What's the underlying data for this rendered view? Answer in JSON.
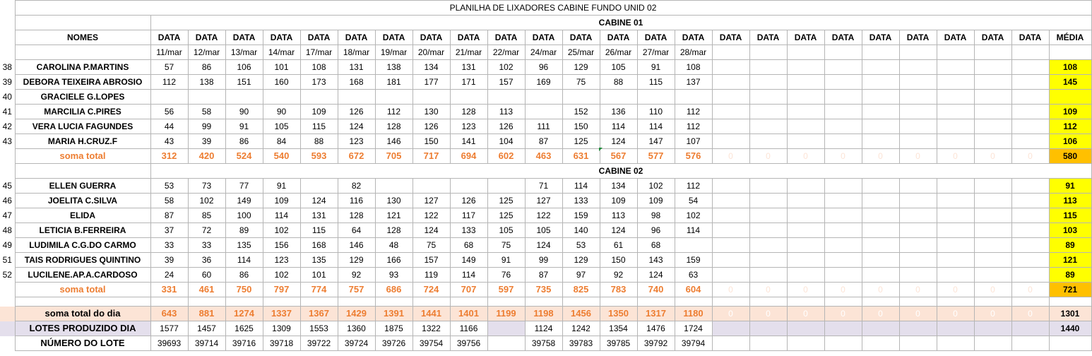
{
  "title": "PLANILHA DE LIXADORES CABINE FUNDO UNID 02",
  "header": {
    "names_label": "NOMES",
    "data_label": "DATA",
    "media_label": "MÉDIA",
    "dates": [
      "11/mar",
      "12/mar",
      "13/mar",
      "14/mar",
      "17/mar",
      "18/mar",
      "19/mar",
      "20/mar",
      "21/mar",
      "22/mar",
      "24/mar",
      "25/mar",
      "26/mar",
      "27/mar",
      "28/mar"
    ]
  },
  "cabin1": {
    "label": "CABINE 01",
    "rows": [
      {
        "rn": "38",
        "name": "CAROLINA P.MARTINS",
        "values": [
          "57",
          "86",
          "106",
          "101",
          "108",
          "131",
          "138",
          "134",
          "131",
          "102",
          "96",
          "129",
          "105",
          "91",
          "108"
        ],
        "media": "108"
      },
      {
        "rn": "39",
        "name": "DEBORA TEIXEIRA ABROSIO",
        "values": [
          "112",
          "138",
          "151",
          "160",
          "173",
          "168",
          "181",
          "177",
          "171",
          "157",
          "169",
          "75",
          "88",
          "115",
          "137"
        ],
        "media": "145"
      },
      {
        "rn": "40",
        "name": "GRACIELE G.LOPES",
        "values": [
          "",
          "",
          "",
          "",
          "",
          "",
          "",
          "",
          "",
          "",
          "",
          "",
          "",
          "",
          ""
        ],
        "media": ""
      },
      {
        "rn": "41",
        "name": "MARCILIA C.PIRES",
        "values": [
          "56",
          "58",
          "90",
          "90",
          "109",
          "126",
          "112",
          "130",
          "128",
          "113",
          "",
          "152",
          "136",
          "110",
          "112"
        ],
        "media": "109"
      },
      {
        "rn": "42",
        "name": "VERA LUCIA FAGUNDES",
        "values": [
          "44",
          "99",
          "91",
          "105",
          "115",
          "124",
          "128",
          "126",
          "123",
          "126",
          "111",
          "150",
          "114",
          "114",
          "112"
        ],
        "media": "112"
      },
      {
        "rn": "43",
        "name": "MARIA H.CRUZ.F",
        "values": [
          "43",
          "39",
          "86",
          "84",
          "88",
          "123",
          "146",
          "150",
          "141",
          "104",
          "87",
          "125",
          "124",
          "147",
          "107"
        ],
        "media": "106"
      }
    ],
    "sum_label": "soma total",
    "sum_values": [
      "312",
      "420",
      "524",
      "540",
      "593",
      "672",
      "705",
      "717",
      "694",
      "602",
      "463",
      "631",
      "567",
      "577",
      "576",
      "0",
      "0",
      "0",
      "0",
      "0",
      "0",
      "0",
      "0",
      "0"
    ],
    "sum_media": "580"
  },
  "cabin2": {
    "label": "CABINE 02",
    "rows": [
      {
        "rn": "45",
        "name": "ELLEN GUERRA",
        "values": [
          "53",
          "73",
          "77",
          "91",
          "",
          "82",
          "",
          "",
          "",
          "",
          "71",
          "114",
          "134",
          "102",
          "112"
        ],
        "media": "91"
      },
      {
        "rn": "46",
        "name": "JOELITA C.SILVA",
        "values": [
          "58",
          "102",
          "149",
          "109",
          "124",
          "116",
          "130",
          "127",
          "126",
          "125",
          "127",
          "133",
          "109",
          "109",
          "54"
        ],
        "media": "113"
      },
      {
        "rn": "47",
        "name": "ELIDA",
        "values": [
          "87",
          "85",
          "100",
          "114",
          "131",
          "128",
          "121",
          "122",
          "117",
          "125",
          "122",
          "159",
          "113",
          "98",
          "102"
        ],
        "media": "115"
      },
      {
        "rn": "48",
        "name": "LETICIA B.FERREIRA",
        "values": [
          "37",
          "72",
          "89",
          "102",
          "115",
          "64",
          "128",
          "124",
          "133",
          "105",
          "105",
          "140",
          "124",
          "96",
          "114"
        ],
        "media": "103"
      },
      {
        "rn": "49",
        "name": "LUDIMILA C.G.DO CARMO",
        "values": [
          "33",
          "33",
          "135",
          "156",
          "168",
          "146",
          "48",
          "75",
          "68",
          "75",
          "124",
          "53",
          "61",
          "68",
          ""
        ],
        "media": "89"
      },
      {
        "rn": "51",
        "name": "TAIS RODRIGUES QUINTINO",
        "values": [
          "39",
          "36",
          "114",
          "123",
          "135",
          "129",
          "166",
          "157",
          "149",
          "91",
          "99",
          "129",
          "150",
          "143",
          "159"
        ],
        "media": "121"
      },
      {
        "rn": "52",
        "name": "LUCILENE.AP.A.CARDOSO",
        "values": [
          "24",
          "60",
          "86",
          "102",
          "101",
          "92",
          "93",
          "119",
          "114",
          "76",
          "87",
          "97",
          "92",
          "124",
          "63"
        ],
        "media": "89"
      }
    ],
    "sum_label": "soma total",
    "sum_values": [
      "331",
      "461",
      "750",
      "797",
      "774",
      "757",
      "686",
      "724",
      "707",
      "597",
      "735",
      "825",
      "783",
      "740",
      "604",
      "0",
      "0",
      "0",
      "0",
      "0",
      "0",
      "0",
      "0",
      "0"
    ],
    "sum_media": "721"
  },
  "day_total": {
    "label": "soma total  do dia",
    "values": [
      "643",
      "881",
      "1274",
      "1337",
      "1367",
      "1429",
      "1391",
      "1441",
      "1401",
      "1199",
      "1198",
      "1456",
      "1350",
      "1317",
      "1180",
      "0",
      "0",
      "0",
      "0",
      "0",
      "0",
      "0",
      "0",
      "0"
    ],
    "media": "1301"
  },
  "lotes": {
    "label": "LOTES PRODUZIDO DIA",
    "values": [
      "1577",
      "1457",
      "1625",
      "1309",
      "1553",
      "1360",
      "1875",
      "1322",
      "1166",
      "",
      "1124",
      "1242",
      "1354",
      "1476",
      "1724"
    ],
    "media": "1440"
  },
  "numero_lote": {
    "label": "NÚMERO DO LOTE",
    "values": [
      "39693",
      "39714",
      "39716",
      "39718",
      "39722",
      "39724",
      "39726",
      "39754",
      "39756",
      "",
      "39758",
      "39783",
      "39785",
      "39792",
      "39794"
    ]
  },
  "colors": {
    "title_red": "#e02020",
    "orange": "#ed7d31",
    "yellow": "#ffff00",
    "amber": "#ffc000",
    "pink": "#fce4d6",
    "lavender": "#e4dfec"
  }
}
